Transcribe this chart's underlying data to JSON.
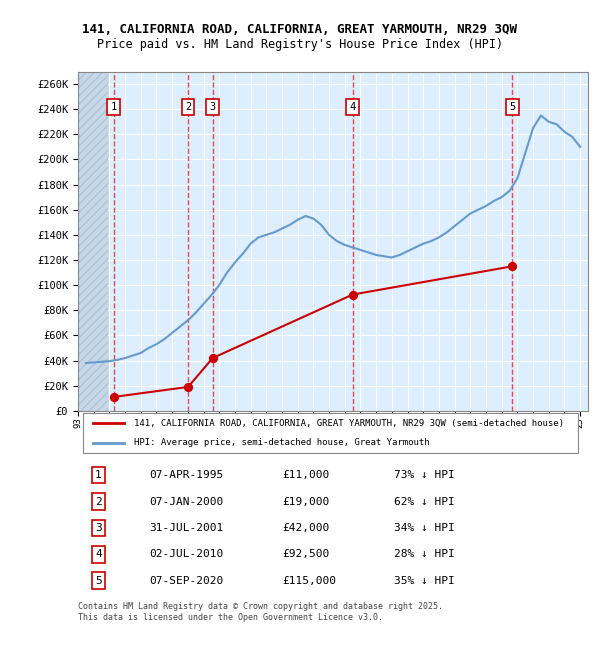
{
  "title_line1": "141, CALIFORNIA ROAD, CALIFORNIA, GREAT YARMOUTH, NR29 3QW",
  "title_line2": "Price paid vs. HM Land Registry's House Price Index (HPI)",
  "ylabel": "",
  "background_color": "#ffffff",
  "plot_bg_color": "#ddeeff",
  "grid_color": "#ffffff",
  "hatch_color": "#c8d8e8",
  "sale_dates": [
    "1995-04-07",
    "2000-01-07",
    "2001-07-31",
    "2010-07-02",
    "2020-09-07"
  ],
  "sale_prices": [
    11000,
    19000,
    42000,
    92500,
    115000
  ],
  "sale_labels": [
    "1",
    "2",
    "3",
    "4",
    "5"
  ],
  "legend_entries": [
    "141, CALIFORNIA ROAD, CALIFORNIA, GREAT YARMOUTH, NR29 3QW (semi-detached house)",
    "HPI: Average price, semi-detached house, Great Yarmouth"
  ],
  "table_data": [
    [
      "1",
      "07-APR-1995",
      "£11,000",
      "73% ↓ HPI"
    ],
    [
      "2",
      "07-JAN-2000",
      "£19,000",
      "62% ↓ HPI"
    ],
    [
      "3",
      "31-JUL-2001",
      "£42,000",
      "34% ↓ HPI"
    ],
    [
      "4",
      "02-JUL-2010",
      "£92,500",
      "28% ↓ HPI"
    ],
    [
      "5",
      "07-SEP-2020",
      "£115,000",
      "35% ↓ HPI"
    ]
  ],
  "footnote": "Contains HM Land Registry data © Crown copyright and database right 2025.\nThis data is licensed under the Open Government Licence v3.0.",
  "ylim": [
    0,
    270000
  ],
  "yticks": [
    0,
    20000,
    40000,
    60000,
    80000,
    100000,
    120000,
    140000,
    160000,
    180000,
    200000,
    220000,
    240000,
    260000
  ],
  "ytick_labels": [
    "£0",
    "£20K",
    "£40K",
    "£60K",
    "£80K",
    "£100K",
    "£120K",
    "£140K",
    "£160K",
    "£180K",
    "£200K",
    "£220K",
    "£240K",
    "£260K"
  ],
  "sale_line_color": "#cc0000",
  "hpi_line_color": "#6699cc",
  "vline_color": "#dd2222",
  "marker_color": "#cc0000",
  "marker_size": 8,
  "hpi_data_x": [
    1993.5,
    1994.0,
    1994.5,
    1995.0,
    1995.25,
    1995.5,
    1996.0,
    1996.5,
    1997.0,
    1997.5,
    1998.0,
    1998.5,
    1999.0,
    1999.5,
    2000.0,
    2000.5,
    2001.0,
    2001.5,
    2002.0,
    2002.5,
    2003.0,
    2003.5,
    2004.0,
    2004.5,
    2005.0,
    2005.5,
    2006.0,
    2006.5,
    2007.0,
    2007.5,
    2008.0,
    2008.5,
    2009.0,
    2009.5,
    2010.0,
    2010.5,
    2011.0,
    2011.5,
    2012.0,
    2012.5,
    2013.0,
    2013.5,
    2014.0,
    2014.5,
    2015.0,
    2015.5,
    2016.0,
    2016.5,
    2017.0,
    2017.5,
    2018.0,
    2018.5,
    2019.0,
    2019.5,
    2020.0,
    2020.5,
    2021.0,
    2021.5,
    2022.0,
    2022.5,
    2023.0,
    2023.5,
    2024.0,
    2024.5,
    2025.0
  ],
  "hpi_data_y": [
    38000,
    38500,
    39000,
    39500,
    40000,
    40500,
    42000,
    44000,
    46000,
    50000,
    53000,
    57000,
    62000,
    67000,
    72000,
    78000,
    85000,
    92000,
    100000,
    110000,
    118000,
    125000,
    133000,
    138000,
    140000,
    142000,
    145000,
    148000,
    152000,
    155000,
    153000,
    148000,
    140000,
    135000,
    132000,
    130000,
    128000,
    126000,
    124000,
    123000,
    122000,
    124000,
    127000,
    130000,
    133000,
    135000,
    138000,
    142000,
    147000,
    152000,
    157000,
    160000,
    163000,
    167000,
    170000,
    175000,
    185000,
    205000,
    225000,
    235000,
    230000,
    228000,
    222000,
    218000,
    210000
  ]
}
